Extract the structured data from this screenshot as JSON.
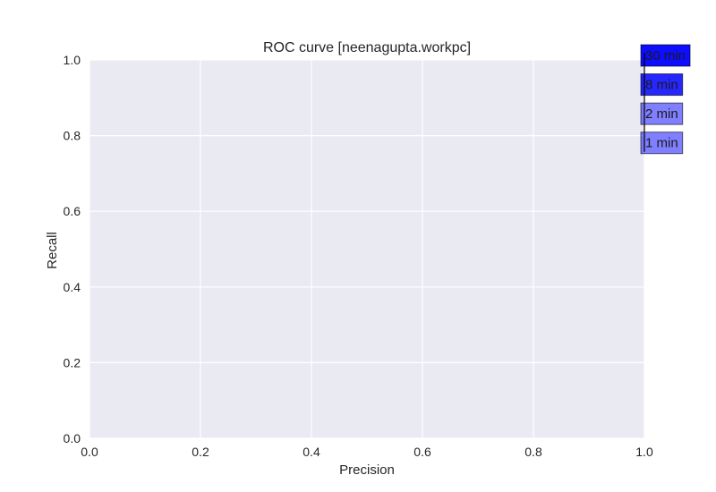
{
  "chart_data": {
    "type": "line",
    "title": "ROC curve [neenagupta.workpc]",
    "xlabel": "Precision",
    "ylabel": "Recall",
    "xlim": [
      0.0,
      1.0
    ],
    "ylim": [
      0.0,
      1.0
    ],
    "xticks": [
      "0.0",
      "0.2",
      "0.4",
      "0.6",
      "0.8",
      "1.0"
    ],
    "yticks": [
      "0.0",
      "0.2",
      "0.4",
      "0.6",
      "0.8",
      "1.0"
    ],
    "grid": true,
    "background": "#eaeaf2",
    "grid_color": "#ffffff",
    "annotations": [
      {
        "text": "30 min",
        "x": 1.0,
        "y": 1.0,
        "color": "#0000ff",
        "alpha": 0.95
      },
      {
        "text": "8 min",
        "x": 1.0,
        "y": 0.923,
        "color": "#0000ff",
        "alpha": 0.85
      },
      {
        "text": "2 min",
        "x": 1.0,
        "y": 0.846,
        "color": "#0000ff",
        "alpha": 0.5
      },
      {
        "text": "1 min",
        "x": 1.0,
        "y": 0.769,
        "color": "#0000ff",
        "alpha": 0.5
      }
    ]
  }
}
